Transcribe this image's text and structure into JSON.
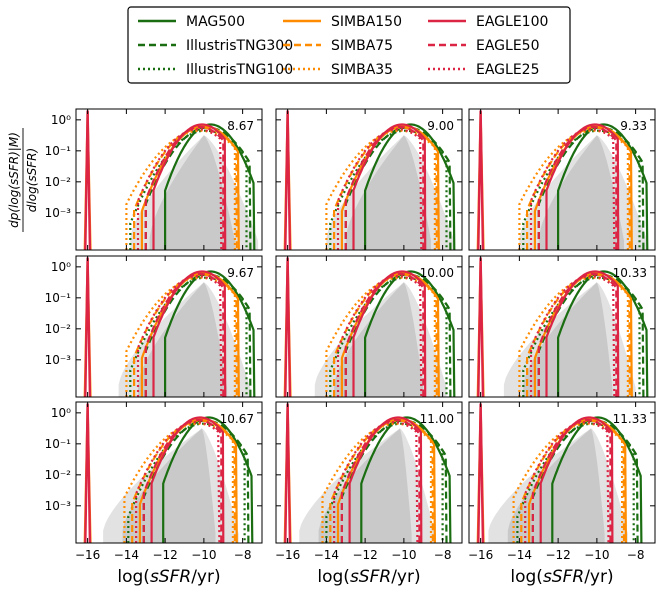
{
  "chart_data": {
    "type": "line",
    "title": "",
    "ylabel_top": "dp(log(sSFR)|M)",
    "ylabel_bottom": "dlog(sSFR)",
    "xlabel_prefix": "log(",
    "xlabel_var": "sSFR",
    "xlabel_suffix": "/yr)",
    "xlim": [
      -16.6,
      -7.0
    ],
    "ylim_log10": [
      -4.2,
      0.35
    ],
    "xticks": [
      -16,
      -14,
      -12,
      -10,
      -8
    ],
    "yticks": [
      {
        "v": 0,
        "label": "10⁰"
      },
      {
        "v": -1,
        "label": "10⁻¹"
      },
      {
        "v": -2,
        "label": "10⁻²"
      },
      {
        "v": -3,
        "label": "10⁻³"
      }
    ],
    "legend": [
      {
        "name": "MAG500",
        "color": "#1a6e11",
        "dash": "solid"
      },
      {
        "name": "IllustrisTNG300",
        "color": "#1a6e11",
        "dash": "dashed"
      },
      {
        "name": "IllustrisTNG100",
        "color": "#1a6e11",
        "dash": "dotted"
      },
      {
        "name": "SIMBA150",
        "color": "#ff8c00",
        "dash": "solid"
      },
      {
        "name": "SIMBA75",
        "color": "#ff8c00",
        "dash": "dashed"
      },
      {
        "name": "SIMBA35",
        "color": "#ff8c00",
        "dash": "dotted"
      },
      {
        "name": "EAGLE100",
        "color": "#dc2545",
        "dash": "solid"
      },
      {
        "name": "EAGLE50",
        "color": "#dc2545",
        "dash": "dashed"
      },
      {
        "name": "EAGLE25",
        "color": "#dc2545",
        "dash": "dotted"
      }
    ],
    "panels": [
      {
        "label": "8.67",
        "peak": -10.0,
        "low": -12.8,
        "high": -8.4
      },
      {
        "label": "9.00",
        "peak": -10.0,
        "low": -13.0,
        "high": -8.6
      },
      {
        "label": "9.33",
        "peak": -10.0,
        "low": -13.0,
        "high": -8.6
      },
      {
        "label": "9.67",
        "peak": -10.0,
        "low": -13.4,
        "high": -8.8
      },
      {
        "label": "10.00",
        "peak": -10.0,
        "low": -13.6,
        "high": -9.0
      },
      {
        "label": "10.33",
        "peak": -10.0,
        "low": -13.8,
        "high": -9.2
      },
      {
        "label": "10.67",
        "peak": -10.1,
        "low": -14.2,
        "high": -9.4
      },
      {
        "label": "11.00",
        "peak": -10.2,
        "low": -14.4,
        "high": -9.6
      },
      {
        "label": "11.33",
        "peak": -10.3,
        "low": -14.6,
        "high": -9.6
      }
    ]
  }
}
